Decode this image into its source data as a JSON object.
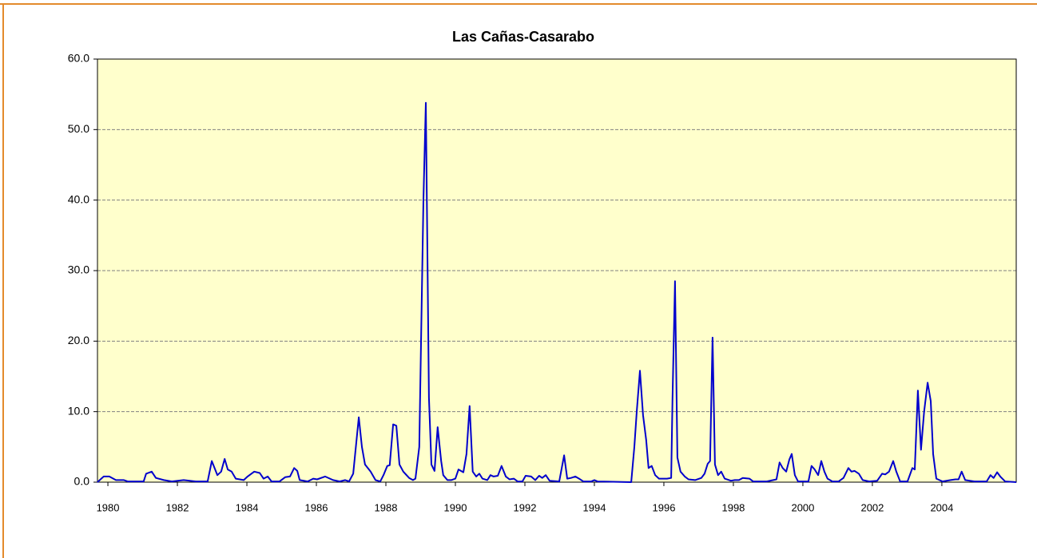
{
  "chart_data": {
    "type": "line",
    "title": "Las Cañas-Casarabo",
    "xlim": [
      1979.7,
      2006.14
    ],
    "xticks": [
      1980,
      1982,
      1984,
      1986,
      1988,
      1990,
      1992,
      1994,
      1996,
      1998,
      2000,
      2002,
      2004
    ],
    "ylim": [
      0,
      60
    ],
    "yticks": [
      {
        "value": 0,
        "label": "0.0"
      },
      {
        "value": 10,
        "label": "10.0"
      },
      {
        "value": 20,
        "label": "20.0"
      },
      {
        "value": 30,
        "label": "30.0"
      },
      {
        "value": 40,
        "label": "40.0"
      },
      {
        "value": 50,
        "label": "50.0"
      },
      {
        "value": 60,
        "label": "60.0"
      }
    ],
    "grid": true,
    "x": [
      1979.7,
      1979.88,
      1980.04,
      1980.23,
      1980.46,
      1980.57,
      1980.8,
      1981.03,
      1981.1,
      1981.26,
      1981.38,
      1981.61,
      1981.84,
      1982.18,
      1982.53,
      1982.87,
      1982.99,
      1983.15,
      1983.26,
      1983.36,
      1983.45,
      1983.56,
      1983.68,
      1983.91,
      1984.02,
      1984.21,
      1984.37,
      1984.48,
      1984.6,
      1984.71,
      1984.94,
      1985.1,
      1985.24,
      1985.36,
      1985.45,
      1985.52,
      1985.75,
      1985.91,
      1986.02,
      1986.25,
      1986.48,
      1986.67,
      1986.83,
      1986.94,
      1987.06,
      1987.22,
      1987.31,
      1987.4,
      1987.56,
      1987.7,
      1987.84,
      1987.93,
      1988.04,
      1988.11,
      1988.21,
      1988.3,
      1988.39,
      1988.5,
      1988.67,
      1988.78,
      1988.85,
      1988.96,
      1989.08,
      1989.15,
      1989.24,
      1989.31,
      1989.4,
      1989.49,
      1989.59,
      1989.65,
      1989.77,
      1989.88,
      1990.0,
      1990.09,
      1990.23,
      1990.32,
      1990.41,
      1990.5,
      1990.6,
      1990.69,
      1990.78,
      1990.92,
      1991.01,
      1991.1,
      1991.22,
      1991.33,
      1991.45,
      1991.56,
      1991.68,
      1991.79,
      1991.93,
      1992.02,
      1992.18,
      1992.3,
      1992.41,
      1992.5,
      1992.6,
      1992.71,
      1992.99,
      1993.13,
      1993.22,
      1993.33,
      1993.45,
      1993.56,
      1993.68,
      1993.91,
      1994.0,
      1994.09,
      1995.06,
      1995.15,
      1995.22,
      1995.31,
      1995.4,
      1995.49,
      1995.56,
      1995.65,
      1995.75,
      1995.86,
      1996.09,
      1996.21,
      1996.25,
      1996.32,
      1996.39,
      1996.48,
      1996.6,
      1996.71,
      1996.9,
      1997.08,
      1997.17,
      1997.26,
      1997.33,
      1997.4,
      1997.47,
      1997.56,
      1997.65,
      1997.75,
      1997.93,
      1998.04,
      1998.16,
      1998.27,
      1998.46,
      1998.57,
      1998.96,
      1999.24,
      1999.33,
      1999.42,
      1999.52,
      1999.61,
      1999.68,
      1999.77,
      1999.86,
      2000.16,
      2000.25,
      2000.34,
      2000.44,
      2000.53,
      2000.62,
      2000.71,
      2000.85,
      2001.03,
      2001.17,
      2001.31,
      2001.4,
      2001.49,
      2001.61,
      2001.72,
      2001.91,
      2002.14,
      2002.28,
      2002.37,
      2002.48,
      2002.6,
      2002.69,
      2002.8,
      2003.01,
      2003.15,
      2003.22,
      2003.31,
      2003.4,
      2003.49,
      2003.59,
      2003.68,
      2003.75,
      2003.84,
      2004.02,
      2004.25,
      2004.39,
      2004.48,
      2004.57,
      2004.67,
      2004.94,
      2005.29,
      2005.4,
      2005.49,
      2005.59,
      2005.68,
      2005.82,
      2006.14
    ],
    "series": [
      {
        "color": "#0000cc",
        "values": [
          0,
          0.8,
          0.8,
          0.3,
          0.3,
          0.1,
          0.1,
          0.1,
          1.2,
          1.5,
          0.6,
          0.3,
          0.1,
          0.3,
          0.1,
          0.1,
          3.0,
          1.0,
          1.5,
          3.3,
          1.8,
          1.5,
          0.5,
          0.3,
          0.8,
          1.5,
          1.3,
          0.5,
          0.8,
          0.1,
          0.1,
          0.7,
          0.8,
          2.0,
          1.6,
          0.3,
          0.1,
          0.5,
          0.4,
          0.8,
          0.3,
          0.1,
          0.3,
          0.1,
          1.2,
          9.2,
          5.0,
          2.5,
          1.5,
          0.3,
          0.1,
          1.0,
          2.3,
          2.4,
          8.2,
          8.0,
          2.5,
          1.5,
          0.6,
          0.3,
          0.5,
          5.0,
          40,
          53.8,
          12,
          2.5,
          1.6,
          7.8,
          3.0,
          1.0,
          0.3,
          0.3,
          0.5,
          1.8,
          1.4,
          4.0,
          10.8,
          1.5,
          0.8,
          1.2,
          0.5,
          0.3,
          1.0,
          0.8,
          0.9,
          2.3,
          0.8,
          0.4,
          0.5,
          0.1,
          0.1,
          0.9,
          0.8,
          0.3,
          0.9,
          0.6,
          1.0,
          0.2,
          0.1,
          3.8,
          0.5,
          0.6,
          0.8,
          0.5,
          0.1,
          0.1,
          0.3,
          0.1,
          0.0,
          5.0,
          10,
          15.8,
          9.5,
          6.0,
          2.0,
          2.3,
          1.0,
          0.5,
          0.5,
          0.6,
          12,
          28.5,
          3.5,
          1.5,
          0.8,
          0.4,
          0.3,
          0.6,
          1.2,
          2.6,
          3.0,
          20.5,
          2.5,
          1.0,
          1.5,
          0.5,
          0.2,
          0.3,
          0.3,
          0.6,
          0.5,
          0.1,
          0.1,
          0.4,
          2.8,
          2.0,
          1.5,
          3.2,
          4.0,
          1.0,
          0.1,
          0.1,
          2.3,
          1.8,
          1.0,
          3.0,
          1.5,
          0.5,
          0.1,
          0.1,
          0.6,
          2.0,
          1.5,
          1.6,
          1.2,
          0.3,
          0.1,
          0.2,
          1.2,
          1.1,
          1.5,
          3.0,
          1.5,
          0.1,
          0.1,
          2.0,
          1.8,
          13.0,
          4.6,
          10,
          14.1,
          11.5,
          4.0,
          0.5,
          0.1,
          0.3,
          0.4,
          0.4,
          1.5,
          0.3,
          0.1,
          0.1,
          1.0,
          0.6,
          1.4,
          0.8,
          0.1,
          0
        ]
      }
    ]
  }
}
